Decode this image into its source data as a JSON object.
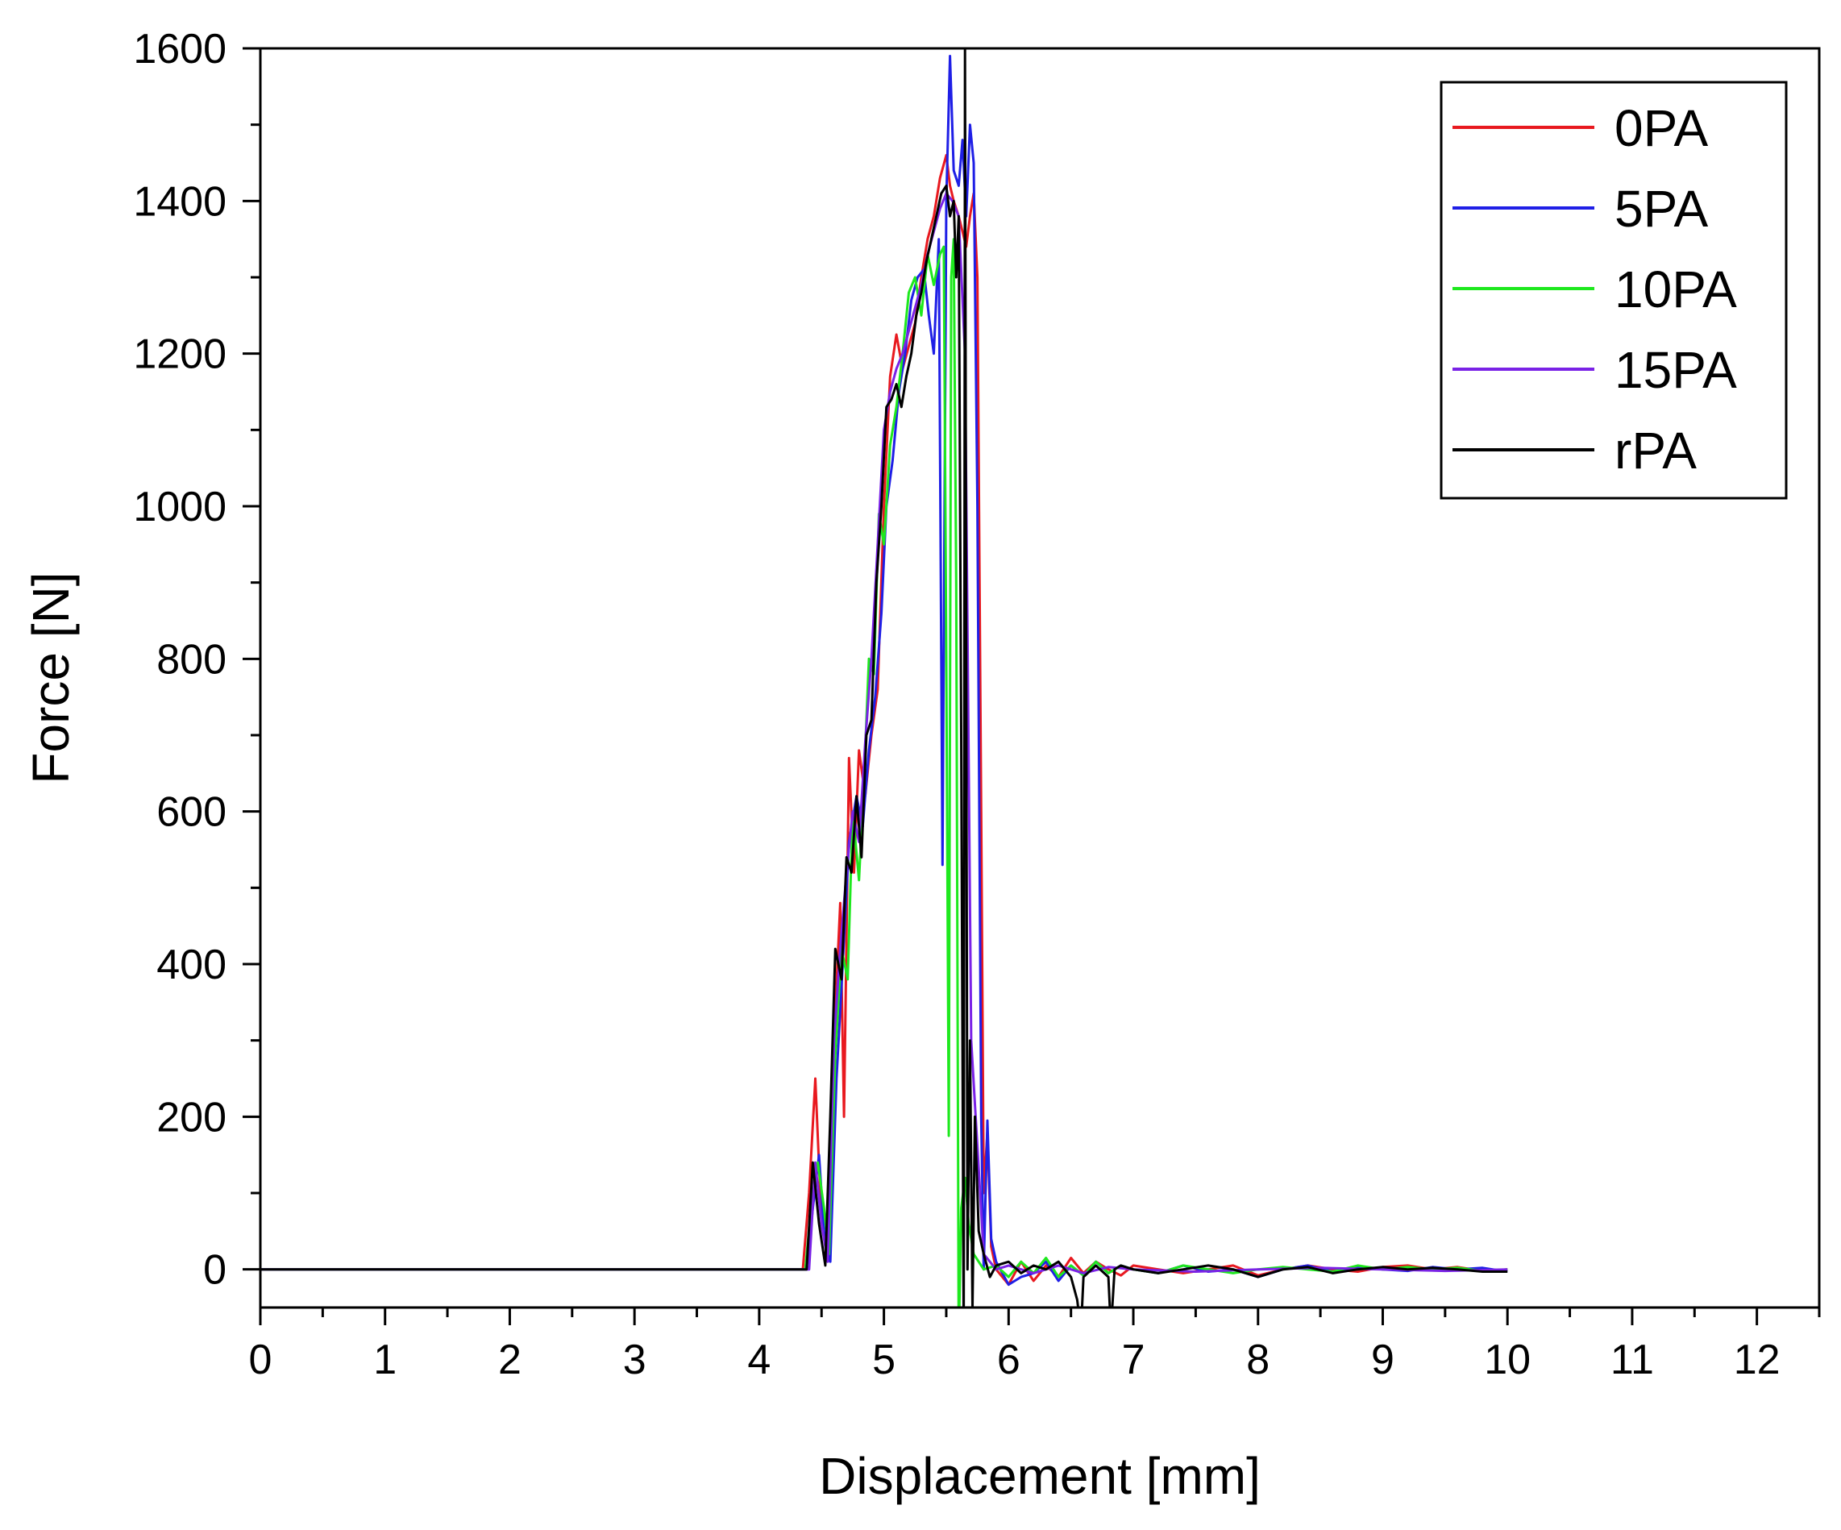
{
  "chart_data": {
    "type": "line",
    "title": "",
    "xlabel": "Displacement [mm]",
    "ylabel": "Force [N]",
    "xlim": [
      0,
      12.5
    ],
    "ylim": [
      -50,
      1600
    ],
    "xticks": [
      "0",
      "1",
      "2",
      "3",
      "4",
      "5",
      "6",
      "7",
      "8",
      "9",
      "10",
      "11",
      "12"
    ],
    "yticks": [
      "0",
      "200",
      "400",
      "600",
      "800",
      "1000",
      "1200",
      "1400",
      "1600"
    ],
    "grid": false,
    "legend_position": "top-right",
    "series": [
      {
        "name": "0PA",
        "color": "#e8191f",
        "x": [
          0,
          4.35,
          4.4,
          4.45,
          4.5,
          4.55,
          4.6,
          4.65,
          4.68,
          4.72,
          4.76,
          4.8,
          4.85,
          4.9,
          4.95,
          5.0,
          5.05,
          5.1,
          5.15,
          5.2,
          5.25,
          5.3,
          5.35,
          5.4,
          5.45,
          5.5,
          5.53,
          5.56,
          5.6,
          5.63,
          5.66,
          5.69,
          5.72,
          5.75,
          5.78,
          5.8,
          5.83,
          5.86,
          5.9,
          6.0,
          6.1,
          6.2,
          6.3,
          6.4,
          6.5,
          6.6,
          6.7,
          6.8,
          6.9,
          7.0,
          7.2,
          7.4,
          7.6,
          7.8,
          8.0,
          8.2,
          8.4,
          8.6,
          8.8,
          9.0,
          9.2,
          9.4,
          9.6,
          9.8,
          10.0
        ],
        "y": [
          0,
          0,
          100,
          250,
          60,
          20,
          300,
          480,
          200,
          670,
          520,
          680,
          620,
          700,
          760,
          1000,
          1170,
          1225,
          1180,
          1210,
          1240,
          1300,
          1350,
          1380,
          1430,
          1460,
          1420,
          1400,
          1380,
          1360,
          1340,
          1380,
          1410,
          1300,
          600,
          100,
          180,
          30,
          0,
          -20,
          10,
          -15,
          5,
          -10,
          15,
          -5,
          10,
          0,
          -8,
          5,
          0,
          -5,
          0,
          5,
          -8,
          0,
          5,
          0,
          -3,
          3,
          5,
          0,
          3,
          -2,
          0
        ]
      },
      {
        "name": "5PA",
        "color": "#1f1fe6",
        "x": [
          0,
          4.38,
          4.43,
          4.48,
          4.52,
          4.57,
          4.62,
          4.67,
          4.72,
          4.78,
          4.83,
          4.88,
          4.93,
          4.98,
          5.02,
          5.07,
          5.12,
          5.17,
          5.22,
          5.27,
          5.32,
          5.36,
          5.4,
          5.44,
          5.47,
          5.5,
          5.53,
          5.56,
          5.6,
          5.63,
          5.66,
          5.69,
          5.72,
          5.75,
          5.78,
          5.8,
          5.83,
          5.86,
          5.9,
          6.0,
          6.1,
          6.2,
          6.3,
          6.4,
          6.5,
          6.6,
          6.7,
          6.8,
          6.9,
          7.0,
          7.2,
          7.4,
          7.6,
          7.8,
          8.0,
          8.2,
          8.4,
          8.6,
          8.8,
          9.0,
          9.2,
          9.4,
          9.6,
          9.8,
          10.0
        ],
        "y": [
          0,
          0,
          80,
          150,
          50,
          10,
          250,
          400,
          560,
          620,
          580,
          680,
          750,
          860,
          1000,
          1060,
          1150,
          1200,
          1270,
          1300,
          1310,
          1250,
          1200,
          1350,
          530,
          1400,
          1590,
          1440,
          1420,
          1480,
          1380,
          1500,
          1450,
          1000,
          200,
          0,
          195,
          40,
          10,
          -20,
          -10,
          -5,
          10,
          -15,
          5,
          -8,
          10,
          -5,
          5,
          0,
          -5,
          5,
          -3,
          0,
          -10,
          0,
          5,
          -3,
          3,
          0,
          -2,
          3,
          0,
          2,
          -3
        ]
      },
      {
        "name": "10PA",
        "color": "#1ee81e",
        "x": [
          0,
          4.37,
          4.42,
          4.47,
          4.52,
          4.56,
          4.61,
          4.66,
          4.71,
          4.75,
          4.8,
          4.84,
          4.88,
          4.92,
          4.96,
          5.0,
          5.05,
          5.1,
          5.15,
          5.2,
          5.25,
          5.3,
          5.35,
          5.4,
          5.45,
          5.48,
          5.5,
          5.52,
          5.54,
          5.56,
          5.58,
          5.6,
          5.62,
          5.65,
          5.68,
          5.72,
          5.8,
          5.9,
          6.0,
          6.1,
          6.2,
          6.3,
          6.4,
          6.5,
          6.6,
          6.7,
          6.8,
          6.9,
          7.0,
          7.2,
          7.4,
          7.6,
          7.8,
          8.0,
          8.2,
          8.4,
          8.6,
          8.8,
          9.0,
          9.2,
          9.4,
          9.6,
          9.8,
          10.0
        ],
        "y": [
          0,
          0,
          90,
          140,
          80,
          20,
          280,
          420,
          380,
          600,
          510,
          640,
          800,
          780,
          990,
          950,
          1080,
          1130,
          1200,
          1280,
          1300,
          1250,
          1330,
          1290,
          1330,
          1340,
          800,
          175,
          1300,
          1350,
          900,
          -100,
          80,
          120,
          60,
          20,
          0,
          5,
          -10,
          10,
          -5,
          15,
          -10,
          5,
          -8,
          10,
          -5,
          5,
          0,
          -5,
          5,
          0,
          -5,
          0,
          3,
          0,
          -3,
          5,
          0,
          3,
          0,
          2,
          -2,
          0
        ]
      },
      {
        "name": "15PA",
        "color": "#7a22e6",
        "x": [
          0,
          4.4,
          4.45,
          4.5,
          4.55,
          4.6,
          4.65,
          4.7,
          4.75,
          4.8,
          4.85,
          4.9,
          4.95,
          5.0,
          5.05,
          5.1,
          5.15,
          5.2,
          5.25,
          5.3,
          5.35,
          5.4,
          5.45,
          5.5,
          5.55,
          5.6,
          5.65,
          5.7,
          5.8,
          5.9,
          6.0,
          6.2,
          6.4,
          6.6,
          6.8,
          7.0,
          7.5,
          8.0,
          8.5,
          9.0,
          9.5,
          10.0
        ],
        "y": [
          0,
          0,
          140,
          60,
          10,
          300,
          420,
          520,
          600,
          560,
          690,
          800,
          950,
          1100,
          1150,
          1180,
          1200,
          1230,
          1260,
          1290,
          1330,
          1360,
          1390,
          1410,
          1400,
          1380,
          1200,
          300,
          20,
          0,
          5,
          -5,
          5,
          -5,
          3,
          0,
          -3,
          0,
          2,
          0,
          -2,
          0
        ]
      },
      {
        "name": "rPA",
        "color": "#000000",
        "x": [
          0,
          4.38,
          4.43,
          4.48,
          4.53,
          4.57,
          4.61,
          4.66,
          4.7,
          4.74,
          4.78,
          4.82,
          4.86,
          4.9,
          4.94,
          4.98,
          5.02,
          5.06,
          5.1,
          5.14,
          5.18,
          5.22,
          5.26,
          5.3,
          5.34,
          5.38,
          5.42,
          5.46,
          5.5,
          5.53,
          5.56,
          5.58,
          5.6,
          5.62,
          5.64,
          5.65,
          5.66,
          5.67,
          5.69,
          5.71,
          5.73,
          5.76,
          5.8,
          5.85,
          5.9,
          6.0,
          6.1,
          6.2,
          6.3,
          6.4,
          6.5,
          6.55,
          6.58,
          6.6,
          6.7,
          6.8,
          6.82,
          6.85,
          6.9,
          7.0,
          7.2,
          7.4,
          7.6,
          7.8,
          8.0,
          8.2,
          8.4,
          8.6,
          8.8,
          9.0,
          9.2,
          9.4,
          9.6,
          9.8,
          10.0
        ],
        "y": [
          0,
          0,
          140,
          60,
          5,
          200,
          420,
          380,
          540,
          520,
          620,
          540,
          700,
          720,
          900,
          1000,
          1130,
          1140,
          1160,
          1130,
          1170,
          1200,
          1250,
          1280,
          1320,
          1350,
          1380,
          1410,
          1420,
          1380,
          1400,
          1300,
          1380,
          700,
          -100,
          1600,
          800,
          0,
          300,
          -50,
          200,
          50,
          20,
          -10,
          5,
          10,
          -5,
          5,
          0,
          10,
          -10,
          -40,
          -80,
          -10,
          5,
          -10,
          -80,
          0,
          5,
          0,
          -5,
          0,
          5,
          0,
          -10,
          0,
          3,
          -5,
          0,
          3,
          0,
          2,
          0,
          -3,
          -3
        ]
      }
    ]
  }
}
